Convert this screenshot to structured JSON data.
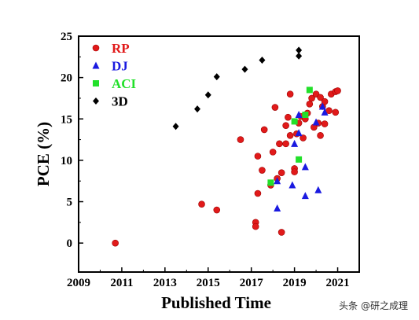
{
  "chart_data": {
    "type": "scatter",
    "title": "",
    "xlabel": "Published Time",
    "ylabel": "PCE (%)",
    "xlim": [
      2009,
      2022
    ],
    "ylim": [
      -3.5,
      25
    ],
    "x_ticks": [
      2009,
      2011,
      2013,
      2015,
      2017,
      2019,
      2021
    ],
    "y_ticks": [
      0,
      5,
      10,
      15,
      20,
      25
    ],
    "legend_position": "top-left",
    "series": [
      {
        "name": "RP",
        "color": "#e11a1a",
        "marker": "circle",
        "points": [
          [
            2010.7,
            0.0
          ],
          [
            2014.7,
            4.7
          ],
          [
            2015.4,
            4.0
          ],
          [
            2016.5,
            12.5
          ],
          [
            2017.2,
            2.5
          ],
          [
            2017.2,
            2.0
          ],
          [
            2017.3,
            6.0
          ],
          [
            2017.3,
            10.5
          ],
          [
            2017.5,
            8.8
          ],
          [
            2017.6,
            13.7
          ],
          [
            2017.9,
            7.0
          ],
          [
            2018.0,
            11.0
          ],
          [
            2018.1,
            16.4
          ],
          [
            2018.2,
            7.8
          ],
          [
            2018.3,
            12.0
          ],
          [
            2018.4,
            8.5
          ],
          [
            2018.4,
            1.3
          ],
          [
            2018.6,
            12.0
          ],
          [
            2018.6,
            14.2
          ],
          [
            2018.7,
            15.2
          ],
          [
            2018.8,
            18.0
          ],
          [
            2018.8,
            13.0
          ],
          [
            2019.0,
            9.0
          ],
          [
            2019.0,
            8.6
          ],
          [
            2019.1,
            13.2
          ],
          [
            2019.2,
            14.5
          ],
          [
            2019.3,
            15.3
          ],
          [
            2019.4,
            12.7
          ],
          [
            2019.5,
            15.0
          ],
          [
            2019.6,
            15.7
          ],
          [
            2019.7,
            16.8
          ],
          [
            2019.8,
            17.5
          ],
          [
            2019.9,
            14.0
          ],
          [
            2020.0,
            18.0
          ],
          [
            2020.1,
            14.5
          ],
          [
            2020.2,
            17.6
          ],
          [
            2020.2,
            13.0
          ],
          [
            2020.3,
            16.5
          ],
          [
            2020.4,
            14.4
          ],
          [
            2020.4,
            17.1
          ],
          [
            2020.6,
            16.0
          ],
          [
            2020.7,
            18.0
          ],
          [
            2020.9,
            18.3
          ],
          [
            2021.0,
            18.4
          ],
          [
            2020.9,
            15.8
          ]
        ]
      },
      {
        "name": "DJ",
        "color": "#1a1ae0",
        "marker": "triangle",
        "points": [
          [
            2018.2,
            4.2
          ],
          [
            2018.2,
            7.5
          ],
          [
            2018.9,
            7.0
          ],
          [
            2019.0,
            12.0
          ],
          [
            2019.2,
            15.5
          ],
          [
            2019.2,
            13.3
          ],
          [
            2019.5,
            9.2
          ],
          [
            2019.5,
            5.7
          ],
          [
            2020.0,
            14.6
          ],
          [
            2020.1,
            6.4
          ],
          [
            2020.3,
            16.5
          ],
          [
            2020.4,
            15.8
          ]
        ]
      },
      {
        "name": "ACI",
        "color": "#22e02a",
        "marker": "square",
        "points": [
          [
            2017.9,
            7.3
          ],
          [
            2019.0,
            14.7
          ],
          [
            2019.2,
            10.1
          ],
          [
            2019.5,
            15.5
          ],
          [
            2019.7,
            18.5
          ]
        ]
      },
      {
        "name": "3D",
        "color": "#000000",
        "marker": "diamond",
        "points": [
          [
            2013.5,
            14.1
          ],
          [
            2014.5,
            16.2
          ],
          [
            2015.0,
            17.9
          ],
          [
            2015.4,
            20.1
          ],
          [
            2016.7,
            21.0
          ],
          [
            2017.5,
            22.1
          ],
          [
            2019.2,
            23.3
          ],
          [
            2019.2,
            22.6
          ]
        ]
      }
    ]
  },
  "watermark": "头条 @研之成理"
}
